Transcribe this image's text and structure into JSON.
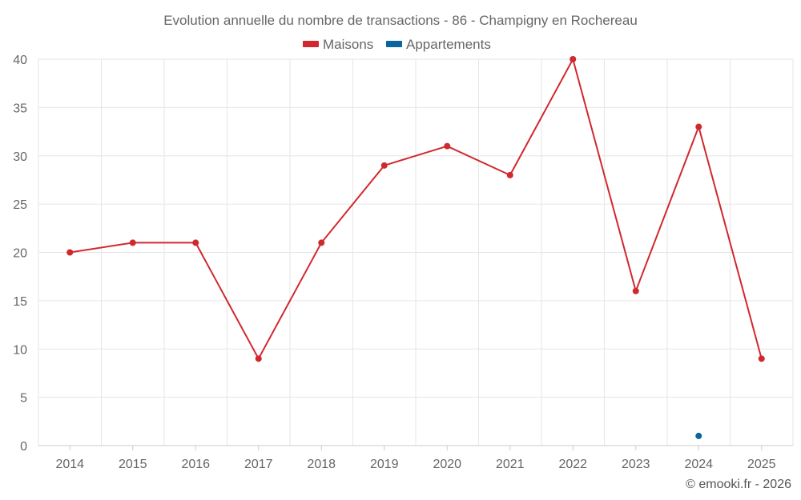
{
  "chart_data": {
    "type": "line",
    "title": "Evolution annuelle du nombre de transactions - 86 - Champigny en Rochereau",
    "categories": [
      "2014",
      "2015",
      "2016",
      "2017",
      "2018",
      "2019",
      "2020",
      "2021",
      "2022",
      "2023",
      "2024",
      "2025"
    ],
    "series": [
      {
        "name": "Maisons",
        "color": "#d0282e",
        "values": [
          20,
          21,
          21,
          9,
          21,
          29,
          31,
          28,
          40,
          16,
          33,
          9
        ]
      },
      {
        "name": "Appartements",
        "color": "#0a64a0",
        "values": [
          null,
          null,
          null,
          null,
          null,
          null,
          null,
          null,
          null,
          null,
          1,
          null
        ]
      }
    ],
    "yticks": [
      "0",
      "5",
      "10",
      "15",
      "20",
      "25",
      "30",
      "35",
      "40"
    ],
    "ylim": [
      0,
      40
    ],
    "grid": true,
    "legend_position": "top-center"
  },
  "credit": "© emooki.fr - 2026"
}
